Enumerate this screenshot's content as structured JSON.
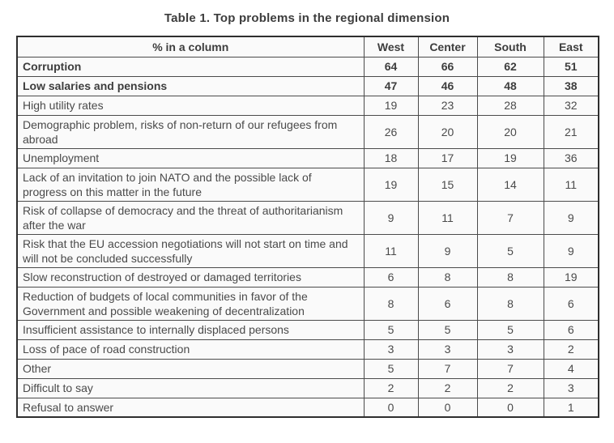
{
  "title": "Table 1. Top problems in the regional dimension",
  "table": {
    "columns": [
      "% in a column",
      "West",
      "Center",
      "South",
      "East"
    ],
    "rows": [
      {
        "label": "Corruption",
        "values": [
          64,
          66,
          62,
          51
        ],
        "bold": true
      },
      {
        "label": "Low salaries and pensions",
        "values": [
          47,
          46,
          48,
          38
        ],
        "bold": true
      },
      {
        "label": "High utility rates",
        "values": [
          19,
          23,
          28,
          32
        ],
        "bold": false
      },
      {
        "label": "Demographic problem, risks of non-return of our refugees from abroad",
        "values": [
          26,
          20,
          20,
          21
        ],
        "bold": false
      },
      {
        "label": "Unemployment",
        "values": [
          18,
          17,
          19,
          36
        ],
        "bold": false
      },
      {
        "label": "Lack of an invitation to join NATO and the possible lack of progress on this matter in the future",
        "values": [
          19,
          15,
          14,
          11
        ],
        "bold": false
      },
      {
        "label": "Risk of collapse of democracy and the threat of authoritarianism after the war",
        "values": [
          9,
          11,
          7,
          9
        ],
        "bold": false
      },
      {
        "label": "Risk that the EU accession negotiations will not start on time and will not be concluded successfully",
        "values": [
          11,
          9,
          5,
          9
        ],
        "bold": false
      },
      {
        "label": "Slow reconstruction of destroyed or damaged territories",
        "values": [
          6,
          8,
          8,
          19
        ],
        "bold": false
      },
      {
        "label": "Reduction of budgets of local communities in favor of the Government and possible weakening of decentralization",
        "values": [
          8,
          6,
          8,
          6
        ],
        "bold": false
      },
      {
        "label": "Insufficient assistance to internally displaced persons",
        "values": [
          5,
          5,
          5,
          6
        ],
        "bold": false
      },
      {
        "label": "Loss of pace of road construction",
        "values": [
          3,
          3,
          3,
          2
        ],
        "bold": false
      },
      {
        "label": "Other",
        "values": [
          5,
          7,
          7,
          4
        ],
        "bold": false
      },
      {
        "label": "Difficult to say",
        "values": [
          2,
          2,
          2,
          3
        ],
        "bold": false
      },
      {
        "label": "Refusal to answer",
        "values": [
          0,
          0,
          0,
          1
        ],
        "bold": false
      }
    ]
  }
}
